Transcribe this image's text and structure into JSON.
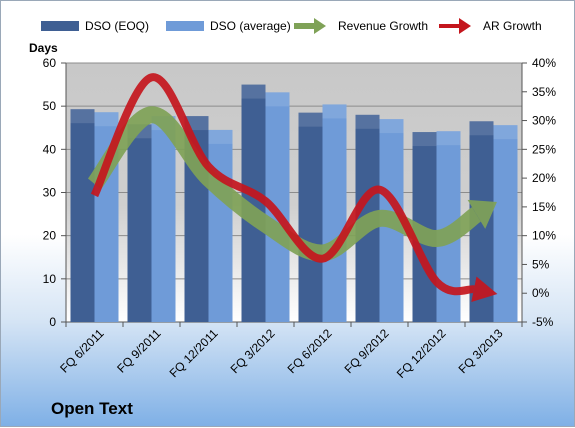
{
  "company_name": "Open Text",
  "colors": {
    "dso_eoq": "#3f5f93",
    "dso_avg": "#6f9bd8",
    "revenue_growth": "#7fa257",
    "ar_growth": "#c4161d"
  },
  "chart_data": {
    "type": "bar",
    "title": "",
    "ylabel": "Days",
    "y2label": "",
    "categories": [
      "FQ 6/2011",
      "FQ 9/2011",
      "FQ 12/2011",
      "FQ 3/2012",
      "FQ 6/2012",
      "FQ 9/2012",
      "FQ 12/2012",
      "FQ 3/2013"
    ],
    "ylim": [
      0,
      60
    ],
    "yticks": [
      0,
      10,
      20,
      30,
      40,
      50,
      60
    ],
    "y2lim": [
      -5,
      40
    ],
    "y2ticks": [
      "-5%",
      "0%",
      "5%",
      "10%",
      "15%",
      "20%",
      "25%",
      "30%",
      "35%",
      "40%"
    ],
    "y2tick_values": [
      -5,
      0,
      5,
      10,
      15,
      20,
      25,
      30,
      35,
      40
    ],
    "series": [
      {
        "name": "DSO (EOQ)",
        "type": "bar",
        "axis": "left",
        "values": [
          49.3,
          45.8,
          47.7,
          55.0,
          48.5,
          48.0,
          44.0,
          46.5
        ]
      },
      {
        "name": "DSO (average)",
        "type": "bar",
        "axis": "left",
        "values": [
          48.6,
          47.7,
          44.5,
          53.2,
          50.4,
          47.0,
          44.2,
          45.6
        ]
      },
      {
        "name": "Revenue Growth",
        "type": "line",
        "axis": "right",
        "unit": "%",
        "values": [
          19,
          31,
          20,
          12,
          7,
          13,
          9.5,
          15.5
        ]
      },
      {
        "name": "AR Growth",
        "type": "line",
        "axis": "right",
        "unit": "%",
        "values": [
          17,
          37.5,
          22,
          16,
          6,
          18,
          2,
          0
        ]
      }
    ],
    "legend_position": "top",
    "grid": true
  }
}
